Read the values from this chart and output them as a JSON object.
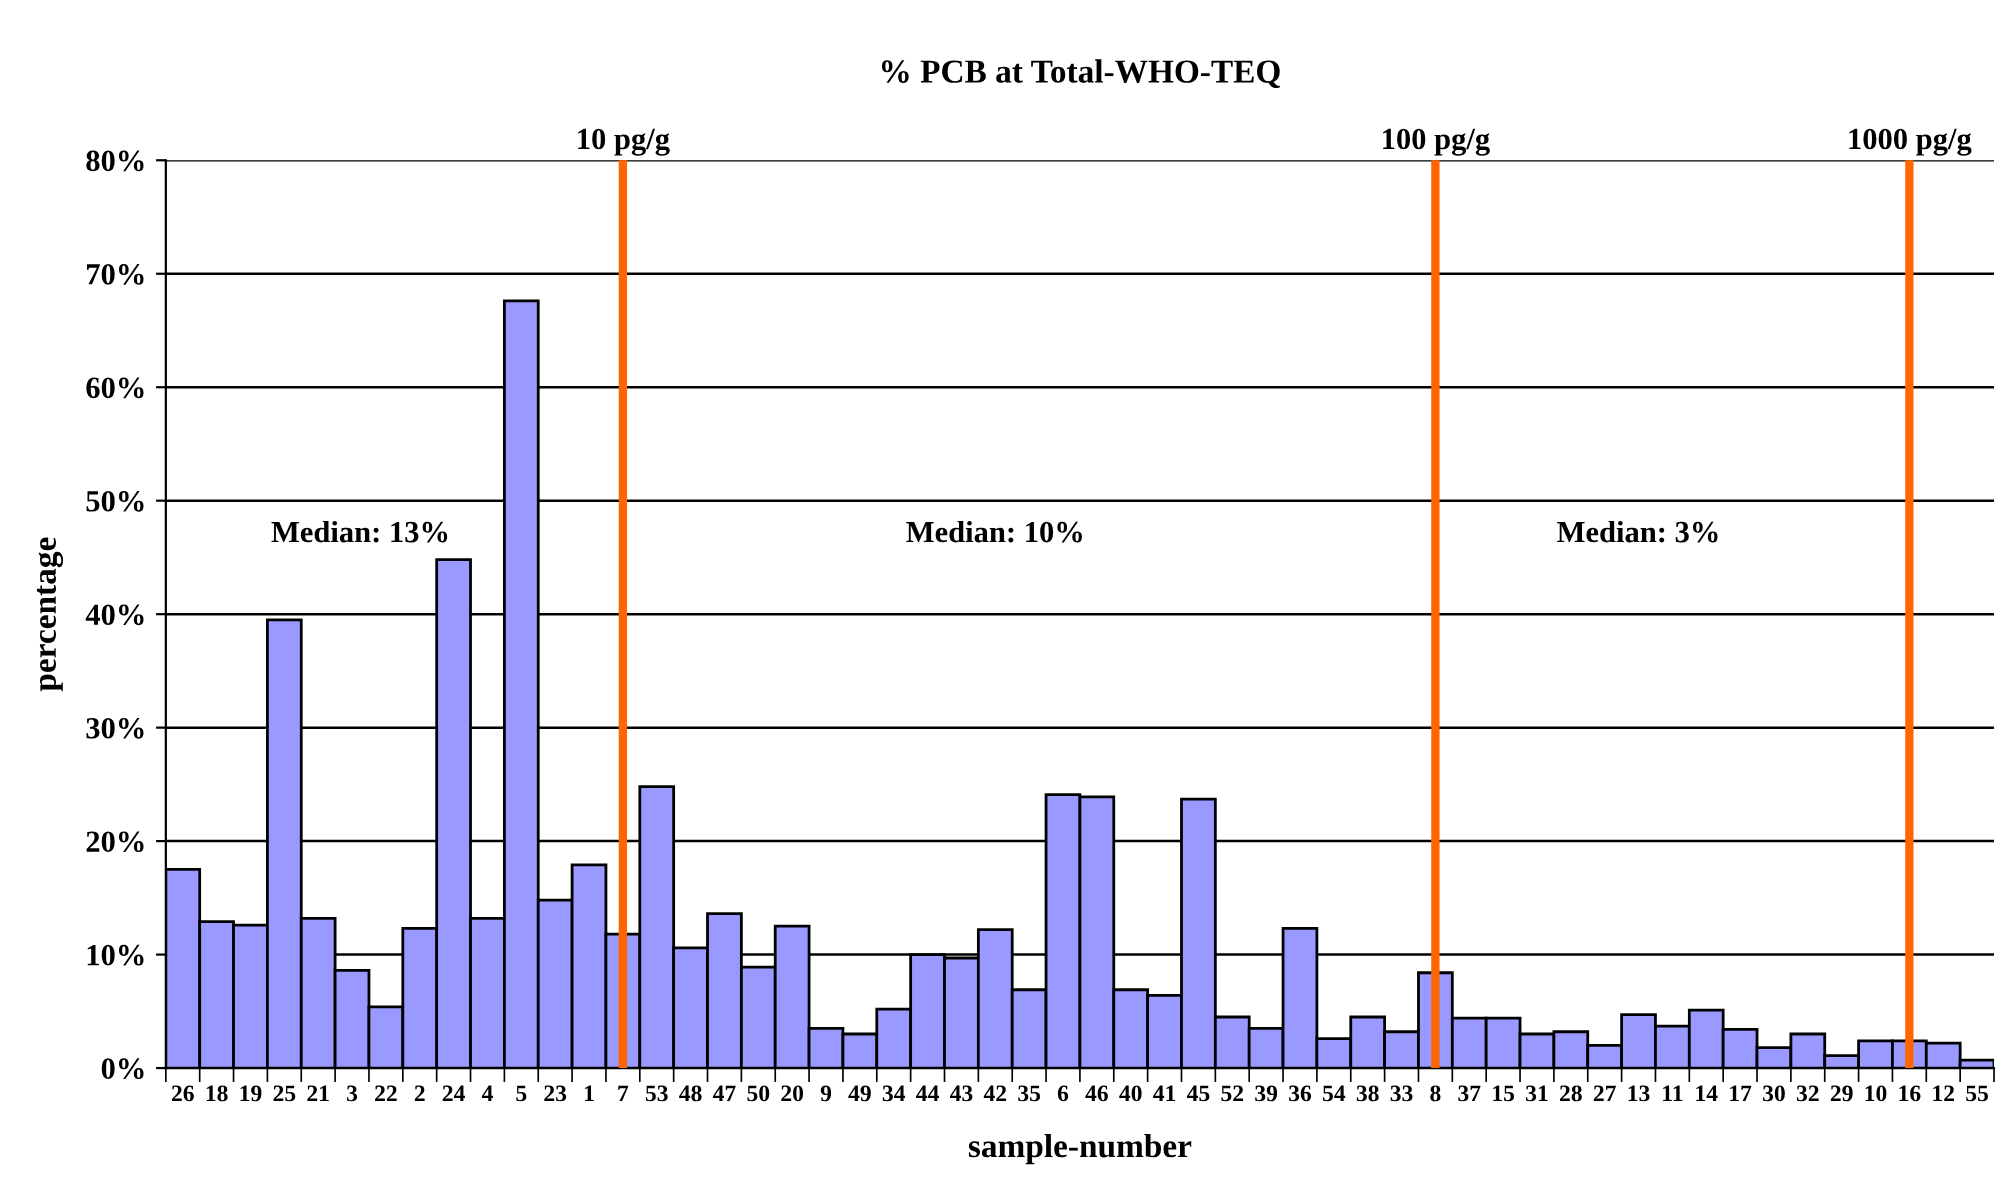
{
  "chart_data": {
    "type": "bar",
    "title": "% PCB at Total-WHO-TEQ",
    "xlabel": "sample-number",
    "ylabel": "percentage",
    "categories": [
      "26",
      "18",
      "19",
      "25",
      "21",
      "3",
      "22",
      "2",
      "24",
      "4",
      "5",
      "23",
      "1",
      "7",
      "53",
      "48",
      "47",
      "50",
      "20",
      "9",
      "49",
      "34",
      "44",
      "43",
      "42",
      "35",
      "6",
      "46",
      "40",
      "41",
      "45",
      "52",
      "39",
      "36",
      "54",
      "38",
      "33",
      "8",
      "37",
      "15",
      "31",
      "28",
      "27",
      "13",
      "11",
      "14",
      "17",
      "30",
      "32",
      "29",
      "10",
      "16",
      "12",
      "55"
    ],
    "values": [
      17.5,
      12.9,
      12.6,
      39.5,
      13.2,
      8.6,
      5.4,
      12.3,
      44.8,
      13.2,
      67.6,
      14.8,
      17.9,
      11.8,
      24.8,
      10.6,
      13.6,
      8.9,
      12.5,
      3.5,
      3.0,
      5.2,
      10.0,
      9.7,
      12.2,
      6.9,
      24.1,
      23.9,
      6.9,
      6.4,
      23.7,
      4.5,
      3.5,
      12.3,
      2.6,
      4.5,
      3.2,
      8.4,
      4.4,
      4.4,
      3.0,
      3.2,
      2.0,
      4.7,
      3.7,
      5.1,
      3.4,
      1.8,
      3.0,
      1.1,
      2.4,
      2.4,
      2.2,
      0.7
    ],
    "color": "#9999ff",
    "ylim": [
      0,
      80
    ],
    "yticks": [
      {
        "value": 0,
        "label": "0%"
      },
      {
        "value": 10,
        "label": "10%"
      },
      {
        "value": 20,
        "label": "20%"
      },
      {
        "value": 30,
        "label": "30%"
      },
      {
        "value": 40,
        "label": "40%"
      },
      {
        "value": 50,
        "label": "50%"
      },
      {
        "value": 60,
        "label": "60%"
      },
      {
        "value": 70,
        "label": "70%"
      },
      {
        "value": 80,
        "label": "80%"
      }
    ],
    "grid": "y",
    "ref_lines": [
      {
        "axis": "x",
        "value": "7",
        "label": "10 pg/g",
        "color": "#ff6600"
      },
      {
        "axis": "x",
        "value": "8",
        "label": "100 pg/g",
        "color": "#ff6600"
      },
      {
        "axis": "x",
        "value": "16",
        "label": "1000 pg/g",
        "color": "#ff6600"
      }
    ],
    "annotations": [
      "Median: 13%",
      "Median: 10%",
      "Median: 3%"
    ]
  }
}
